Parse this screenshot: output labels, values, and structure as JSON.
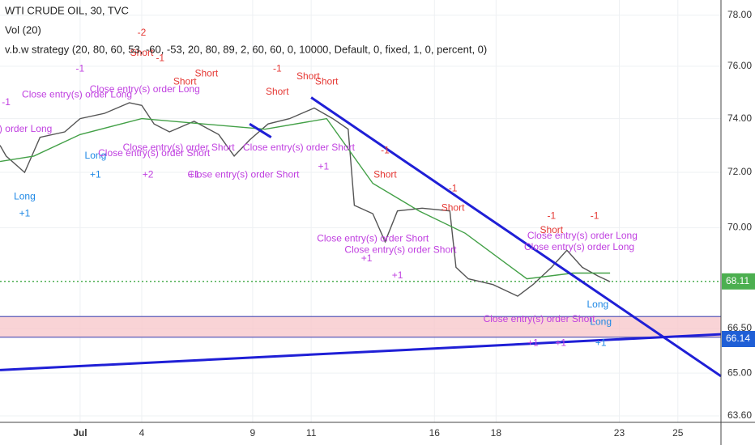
{
  "chart_data": {
    "type": "line",
    "title": "WTI CRUDE OIL, 30, TVC",
    "indicators": [
      "Vol (20)",
      "v.b.w strategy (20, 80, 60, 53, -60, -53, 20, 80, 89, 2, 60, 60, 0, 10000, Default, 0, fixed, 1, 0, percent, 0)"
    ],
    "log_scale": true,
    "grid": true,
    "xlim": [
      -2.6,
      20.8
    ],
    "ylim": [
      63.39,
      78.61
    ],
    "xticks": [
      {
        "value": 0,
        "label": "Jul"
      },
      {
        "value": 2,
        "label": "4"
      },
      {
        "value": 5.6,
        "label": "9"
      },
      {
        "value": 7.5,
        "label": "11"
      },
      {
        "value": 11.5,
        "label": "16"
      },
      {
        "value": 13.5,
        "label": "18"
      },
      {
        "value": 17.5,
        "label": "23"
      },
      {
        "value": 19.4,
        "label": "25"
      }
    ],
    "yticks": [
      {
        "value": 63.6,
        "label": "63.60"
      },
      {
        "value": 65,
        "label": "65.00"
      },
      {
        "value": 66.5,
        "label": "66.50"
      },
      {
        "value": 70,
        "label": "70.00"
      },
      {
        "value": 72,
        "label": "72.00"
      },
      {
        "value": 74,
        "label": "74.00"
      },
      {
        "value": 76,
        "label": "76.00"
      },
      {
        "value": 78,
        "label": "78.00"
      }
    ],
    "series": [
      {
        "color": "#555555",
        "x": [
          -2.6,
          -2.4,
          -1.8,
          -1.3,
          -0.5,
          0,
          0.8,
          1.6,
          2,
          2.4,
          2.9,
          3.7,
          4.5,
          5,
          5.5,
          6.1,
          6.8,
          7.6,
          8.2,
          8.7,
          8.9,
          9.5,
          9.9,
          10.3,
          11.1,
          12,
          12.2,
          12.6,
          13.4,
          14.2,
          14.7,
          15.3,
          15.8,
          16.3,
          16.8,
          17.2
        ],
        "values": [
          73.0,
          72.6,
          72.0,
          73.3,
          73.5,
          74.0,
          74.2,
          74.6,
          74.5,
          73.8,
          73.5,
          73.9,
          73.4,
          72.6,
          73.2,
          73.8,
          74.0,
          74.4,
          74.0,
          73.6,
          70.8,
          70.5,
          69.5,
          70.6,
          70.7,
          70.6,
          68.6,
          68.2,
          68.0,
          67.6,
          68.0,
          68.6,
          69.2,
          68.6,
          68.3,
          68.1
        ]
      },
      {
        "color": "#43a047",
        "x": [
          -2.6,
          -1.5,
          0,
          2,
          4,
          6,
          8,
          9.5,
          11,
          12.5,
          14.5,
          16,
          17.2
        ],
        "values": [
          72.4,
          72.6,
          73.4,
          74.0,
          73.8,
          73.6,
          74.0,
          71.6,
          70.6,
          69.8,
          68.2,
          68.4,
          68.4
        ]
      }
    ],
    "trendlines": [
      {
        "color": "#1f1fd6",
        "x": [
          7.5,
          20.8
        ],
        "values": [
          74.8,
          64.9
        ]
      },
      {
        "color": "#1f1fd6",
        "x": [
          -2.6,
          20.8
        ],
        "values": [
          65.1,
          66.3
        ]
      },
      {
        "color": "#1f1fd6",
        "x": [
          5.5,
          6.2
        ],
        "values": [
          73.8,
          73.3
        ]
      }
    ],
    "zone": {
      "color": "#f8c8cc",
      "range": [
        66.2,
        66.9
      ]
    },
    "price_line": {
      "value": 68.11,
      "color": "#4caf50"
    },
    "price_labels": [
      {
        "value": 68.11,
        "color": "#4caf50"
      },
      {
        "value": 66.14,
        "color": "#1f5fd6"
      }
    ],
    "signals": [
      {
        "color": "#e53935",
        "items": [
          {
            "text": "-2",
            "x": 2,
            "y": 77.3
          },
          {
            "text": "Short",
            "x": 2,
            "y": 76.5
          },
          {
            "text": "-1",
            "x": 2.6,
            "y": 76.3
          },
          {
            "text": "Short",
            "x": 3.4,
            "y": 75.4
          },
          {
            "text": "Short",
            "x": 4.1,
            "y": 75.7
          },
          {
            "text": "-1",
            "x": 6.4,
            "y": 75.9
          },
          {
            "text": "Short",
            "x": 6.4,
            "y": 75.0
          },
          {
            "text": "Short",
            "x": 7.4,
            "y": 75.6
          },
          {
            "text": "Short",
            "x": 8.0,
            "y": 75.4
          },
          {
            "text": "-1",
            "x": 9.9,
            "y": 72.8
          },
          {
            "text": "Short",
            "x": 9.9,
            "y": 71.9
          },
          {
            "text": "-1",
            "x": 12.1,
            "y": 71.4
          },
          {
            "text": "Short",
            "x": 12.1,
            "y": 70.7
          },
          {
            "text": "-1",
            "x": 15.3,
            "y": 70.4
          },
          {
            "text": "Short",
            "x": 15.3,
            "y": 69.9
          },
          {
            "text": "-1",
            "x": 16.7,
            "y": 70.4
          }
        ]
      },
      {
        "color": "#1e88e5",
        "items": [
          {
            "text": "Long",
            "x": -1.8,
            "y": 71.1
          },
          {
            "text": "+1",
            "x": -1.8,
            "y": 70.5
          },
          {
            "text": "Long",
            "x": 0.5,
            "y": 72.6
          },
          {
            "text": "+1",
            "x": 0.5,
            "y": 71.9
          },
          {
            "text": "Long",
            "x": 16.8,
            "y": 67.3
          },
          {
            "text": "Long",
            "x": 16.9,
            "y": 66.7
          },
          {
            "text": "+1",
            "x": 16.9,
            "y": 66.0
          }
        ]
      },
      {
        "color": "#c040e0",
        "items": [
          {
            "text": "-1",
            "x": -2.4,
            "y": 74.6
          },
          {
            "text": "(s) order Long",
            "x": -1.9,
            "y": 73.6
          },
          {
            "text": "-1",
            "x": 0,
            "y": 75.9
          },
          {
            "text": "Close entry(s) order Long",
            "x": -0.1,
            "y": 74.9
          },
          {
            "text": "Close entry(s) order Long",
            "x": 2.1,
            "y": 75.1
          },
          {
            "text": "Close entry(s) order Short",
            "x": 2.4,
            "y": 72.7
          },
          {
            "text": "Close entry(s) order Short",
            "x": 3.2,
            "y": 72.9
          },
          {
            "text": "+2",
            "x": 2.2,
            "y": 71.9
          },
          {
            "text": "Close entry(s) order Short",
            "x": 5.3,
            "y": 71.9
          },
          {
            "text": "+1",
            "x": 3.7,
            "y": 71.9
          },
          {
            "text": "Close entry(s) order Short",
            "x": 7.1,
            "y": 72.9
          },
          {
            "text": "+1",
            "x": 7.9,
            "y": 72.2
          },
          {
            "text": "Close entry(s) order Short",
            "x": 9.5,
            "y": 69.6
          },
          {
            "text": "Close entry(s) order Short",
            "x": 10.4,
            "y": 69.2
          },
          {
            "text": "+1",
            "x": 9.3,
            "y": 68.9
          },
          {
            "text": "+1",
            "x": 10.3,
            "y": 68.3
          },
          {
            "text": "Close entry(s) order Short",
            "x": 14.9,
            "y": 66.8
          },
          {
            "text": "+1",
            "x": 14.7,
            "y": 66.0
          },
          {
            "text": "+1",
            "x": 15.6,
            "y": 66.0
          },
          {
            "text": "Close entry(s) order Long",
            "x": 16.3,
            "y": 69.7
          },
          {
            "text": "Close entry(s) order Long",
            "x": 16.2,
            "y": 69.3
          }
        ]
      }
    ]
  }
}
